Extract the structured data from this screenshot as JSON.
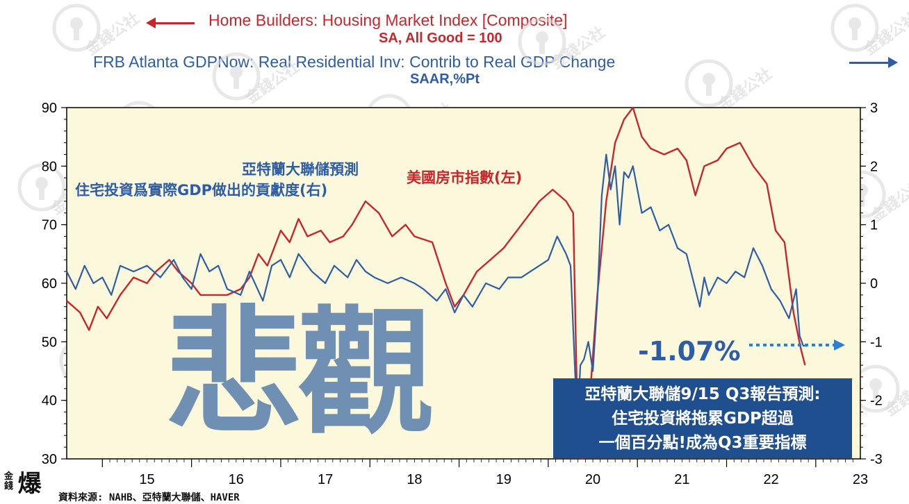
{
  "title_left": "Home Builders: Housing Market Index  [Composite]",
  "subtitle_left": "SA, All Good = 100",
  "title_right": "FRB Atlanta GDPNow: Real Residential Inv: Contrib to Real GDP Change",
  "subtitle_right": "SAAR,%Pt",
  "overlay": {
    "big_text": "悲觀",
    "blue_note_line1": "亞特蘭大聯儲預測",
    "blue_note_line2": "住宅投資爲實際GDP做出的貢獻度(右)",
    "red_note": "美國房市指數(左)",
    "value_label": "-1.07%",
    "callout_line1": "亞特蘭大聯儲9/15 Q3報告預測:",
    "callout_line2": "住宅投資將拖累GDP超過",
    "callout_line3": "一個百分點!成為Q3重要指標",
    "source": "資料來源: NAHB、亞特蘭大聯儲、HAVER",
    "logo_small": "金錢",
    "logo_big": "爆",
    "watermark": "金錢公社"
  },
  "colors": {
    "plot_bg": "#fcf8dc",
    "red_series": "#c8262b",
    "blue_series": "#2e5da8",
    "big_text": "#6f8fb3",
    "callout_bg": "#1f4f8f"
  },
  "chart_data": {
    "type": "line",
    "x_range": [
      2014.6,
      2023.5
    ],
    "xticks": [
      "15",
      "16",
      "17",
      "18",
      "19",
      "20",
      "21",
      "22",
      "23"
    ],
    "left_axis": {
      "range": [
        30,
        90
      ],
      "ticks": [
        "30",
        "40",
        "50",
        "60",
        "70",
        "80",
        "90"
      ]
    },
    "right_axis": {
      "range": [
        -3,
        3
      ],
      "ticks": [
        "-3",
        "-2",
        "-1",
        "0",
        "1",
        "2",
        "3"
      ]
    },
    "grid": false,
    "series": [
      {
        "name": "美國房市指數(左)",
        "axis": "left",
        "color": "#c8262b",
        "points": [
          [
            2014.6,
            57
          ],
          [
            2014.75,
            55
          ],
          [
            2014.85,
            52
          ],
          [
            2014.95,
            56
          ],
          [
            2015.05,
            54
          ],
          [
            2015.2,
            58
          ],
          [
            2015.35,
            61
          ],
          [
            2015.5,
            60
          ],
          [
            2015.6,
            62
          ],
          [
            2015.75,
            64
          ],
          [
            2015.85,
            62
          ],
          [
            2016.0,
            60
          ],
          [
            2016.1,
            58
          ],
          [
            2016.25,
            58
          ],
          [
            2016.4,
            58
          ],
          [
            2016.55,
            59
          ],
          [
            2016.65,
            61
          ],
          [
            2016.75,
            65
          ],
          [
            2016.85,
            63
          ],
          [
            2017.0,
            69
          ],
          [
            2017.1,
            67
          ],
          [
            2017.2,
            71
          ],
          [
            2017.3,
            68
          ],
          [
            2017.45,
            69
          ],
          [
            2017.55,
            67
          ],
          [
            2017.7,
            68
          ],
          [
            2017.8,
            70
          ],
          [
            2017.95,
            74
          ],
          [
            2018.1,
            72
          ],
          [
            2018.25,
            68
          ],
          [
            2018.4,
            70
          ],
          [
            2018.5,
            68
          ],
          [
            2018.7,
            67
          ],
          [
            2018.85,
            60
          ],
          [
            2018.95,
            56
          ],
          [
            2019.05,
            58
          ],
          [
            2019.2,
            62
          ],
          [
            2019.35,
            64
          ],
          [
            2019.5,
            66
          ],
          [
            2019.6,
            68
          ],
          [
            2019.75,
            71
          ],
          [
            2019.9,
            74
          ],
          [
            2020.05,
            76
          ],
          [
            2020.2,
            74
          ],
          [
            2020.28,
            72
          ],
          [
            2020.32,
            42
          ],
          [
            2020.38,
            30
          ],
          [
            2020.45,
            37
          ],
          [
            2020.55,
            58
          ],
          [
            2020.65,
            74
          ],
          [
            2020.75,
            84
          ],
          [
            2020.85,
            88
          ],
          [
            2020.95,
            90
          ],
          [
            2021.05,
            85
          ],
          [
            2021.15,
            83
          ],
          [
            2021.3,
            82
          ],
          [
            2021.45,
            83
          ],
          [
            2021.55,
            81
          ],
          [
            2021.65,
            75
          ],
          [
            2021.75,
            80
          ],
          [
            2021.9,
            81
          ],
          [
            2022.0,
            83
          ],
          [
            2022.15,
            84
          ],
          [
            2022.3,
            80
          ],
          [
            2022.45,
            77
          ],
          [
            2022.55,
            69
          ],
          [
            2022.65,
            67
          ],
          [
            2022.75,
            55
          ],
          [
            2022.83,
            49
          ],
          [
            2022.88,
            46
          ]
        ]
      },
      {
        "name": "亞特蘭大聯儲預測 住宅投資爲實際GDP做出的貢獻度(右)",
        "axis": "right",
        "color": "#2e5da8",
        "points": [
          [
            2014.6,
            0.2
          ],
          [
            2014.7,
            -0.1
          ],
          [
            2014.8,
            0.3
          ],
          [
            2014.9,
            0.0
          ],
          [
            2015.0,
            0.1
          ],
          [
            2015.1,
            -0.2
          ],
          [
            2015.2,
            0.3
          ],
          [
            2015.35,
            0.2
          ],
          [
            2015.5,
            0.3
          ],
          [
            2015.65,
            0.1
          ],
          [
            2015.8,
            0.4
          ],
          [
            2015.9,
            0.1
          ],
          [
            2016.0,
            -0.1
          ],
          [
            2016.1,
            0.5
          ],
          [
            2016.2,
            0.2
          ],
          [
            2016.3,
            0.3
          ],
          [
            2016.4,
            -0.1
          ],
          [
            2016.55,
            -0.2
          ],
          [
            2016.65,
            0.2
          ],
          [
            2016.8,
            -0.3
          ],
          [
            2016.9,
            0.3
          ],
          [
            2017.0,
            0.4
          ],
          [
            2017.1,
            0.1
          ],
          [
            2017.2,
            0.5
          ],
          [
            2017.35,
            0.2
          ],
          [
            2017.5,
            0.0
          ],
          [
            2017.6,
            0.3
          ],
          [
            2017.75,
            0.1
          ],
          [
            2017.85,
            0.4
          ],
          [
            2017.95,
            0.2
          ],
          [
            2018.05,
            0.1
          ],
          [
            2018.2,
            0.0
          ],
          [
            2018.35,
            0.1
          ],
          [
            2018.5,
            0.0
          ],
          [
            2018.6,
            -0.1
          ],
          [
            2018.75,
            -0.3
          ],
          [
            2018.85,
            -0.1
          ],
          [
            2018.95,
            -0.5
          ],
          [
            2019.05,
            -0.2
          ],
          [
            2019.15,
            -0.4
          ],
          [
            2019.3,
            0.0
          ],
          [
            2019.45,
            -0.1
          ],
          [
            2019.55,
            0.1
          ],
          [
            2019.7,
            0.1
          ],
          [
            2019.8,
            0.2
          ],
          [
            2019.9,
            0.3
          ],
          [
            2020.0,
            0.4
          ],
          [
            2020.1,
            0.8
          ],
          [
            2020.2,
            0.5
          ],
          [
            2020.25,
            0.3
          ],
          [
            2020.3,
            -1.5
          ],
          [
            2020.33,
            -2.4
          ],
          [
            2020.36,
            -1.4
          ],
          [
            2020.4,
            -1.3
          ],
          [
            2020.45,
            -1.0
          ],
          [
            2020.5,
            -1.5
          ],
          [
            2020.55,
            -0.3
          ],
          [
            2020.6,
            1.5
          ],
          [
            2020.65,
            2.2
          ],
          [
            2020.7,
            1.6
          ],
          [
            2020.75,
            2.0
          ],
          [
            2020.8,
            1.0
          ],
          [
            2020.85,
            1.9
          ],
          [
            2020.9,
            1.8
          ],
          [
            2020.95,
            2.0
          ],
          [
            2021.05,
            1.2
          ],
          [
            2021.15,
            1.3
          ],
          [
            2021.25,
            0.9
          ],
          [
            2021.35,
            1.0
          ],
          [
            2021.45,
            0.6
          ],
          [
            2021.55,
            0.5
          ],
          [
            2021.6,
            0.2
          ],
          [
            2021.7,
            -0.4
          ],
          [
            2021.75,
            0.1
          ],
          [
            2021.8,
            -0.2
          ],
          [
            2021.9,
            0.1
          ],
          [
            2022.0,
            0.0
          ],
          [
            2022.1,
            0.2
          ],
          [
            2022.2,
            0.1
          ],
          [
            2022.3,
            0.6
          ],
          [
            2022.4,
            0.3
          ],
          [
            2022.5,
            -0.1
          ],
          [
            2022.6,
            -0.3
          ],
          [
            2022.7,
            -0.6
          ],
          [
            2022.78,
            -0.1
          ],
          [
            2022.82,
            -0.9
          ],
          [
            2022.86,
            -1.07
          ],
          [
            2022.9,
            -1.07
          ]
        ]
      }
    ]
  }
}
